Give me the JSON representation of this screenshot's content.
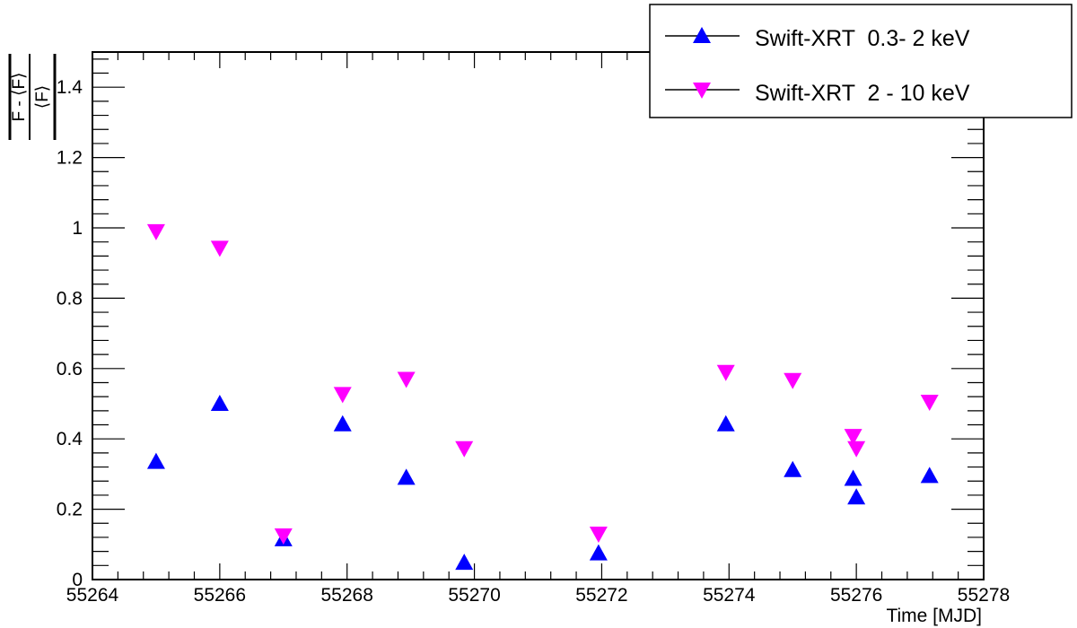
{
  "chart_data": {
    "type": "scatter",
    "title": "",
    "xlabel": "Time [MJD]",
    "ylabel": {
      "numerator": "F - ⟨F⟩",
      "denominator": "⟨F⟩"
    },
    "xlim": [
      55264,
      55278
    ],
    "ylim": [
      0,
      1.5
    ],
    "x_ticks": [
      55264,
      55266,
      55268,
      55270,
      55272,
      55274,
      55276,
      55278
    ],
    "x_tick_labels": [
      "55264",
      "55266",
      "55268",
      "55270",
      "55272",
      "55274",
      "55276",
      "55278"
    ],
    "y_ticks": [
      0,
      0.2,
      0.4,
      0.6,
      0.8,
      1,
      1.2,
      1.4
    ],
    "y_tick_labels": [
      "0",
      "0.2",
      "0.4",
      "0.6",
      "0.8",
      "1",
      "1.2",
      "1.4"
    ],
    "grid": false,
    "legend_position": "top-right",
    "series": [
      {
        "name": "Swift-XRT  0.3- 2 keV",
        "marker": "triangle-up",
        "color": "#0000ff",
        "points": [
          {
            "x": 55265.0,
            "y": 0.335
          },
          {
            "x": 55266.0,
            "y": 0.5
          },
          {
            "x": 55267.0,
            "y": 0.115
          },
          {
            "x": 55267.93,
            "y": 0.442
          },
          {
            "x": 55268.93,
            "y": 0.29
          },
          {
            "x": 55269.84,
            "y": 0.048
          },
          {
            "x": 55271.95,
            "y": 0.075
          },
          {
            "x": 55273.95,
            "y": 0.442
          },
          {
            "x": 55275.0,
            "y": 0.312
          },
          {
            "x": 55275.95,
            "y": 0.287
          },
          {
            "x": 55276.0,
            "y": 0.234
          },
          {
            "x": 55277.15,
            "y": 0.295
          }
        ]
      },
      {
        "name": "Swift-XRT  2 - 10 keV",
        "marker": "triangle-down",
        "color": "#ff00ff",
        "points": [
          {
            "x": 55265.0,
            "y": 0.99
          },
          {
            "x": 55266.0,
            "y": 0.943
          },
          {
            "x": 55267.0,
            "y": 0.125
          },
          {
            "x": 55267.93,
            "y": 0.527
          },
          {
            "x": 55268.93,
            "y": 0.57
          },
          {
            "x": 55269.84,
            "y": 0.373
          },
          {
            "x": 55271.95,
            "y": 0.13
          },
          {
            "x": 55273.95,
            "y": 0.59
          },
          {
            "x": 55275.0,
            "y": 0.567
          },
          {
            "x": 55275.95,
            "y": 0.408
          },
          {
            "x": 55276.0,
            "y": 0.373
          },
          {
            "x": 55277.15,
            "y": 0.505
          }
        ]
      }
    ]
  }
}
